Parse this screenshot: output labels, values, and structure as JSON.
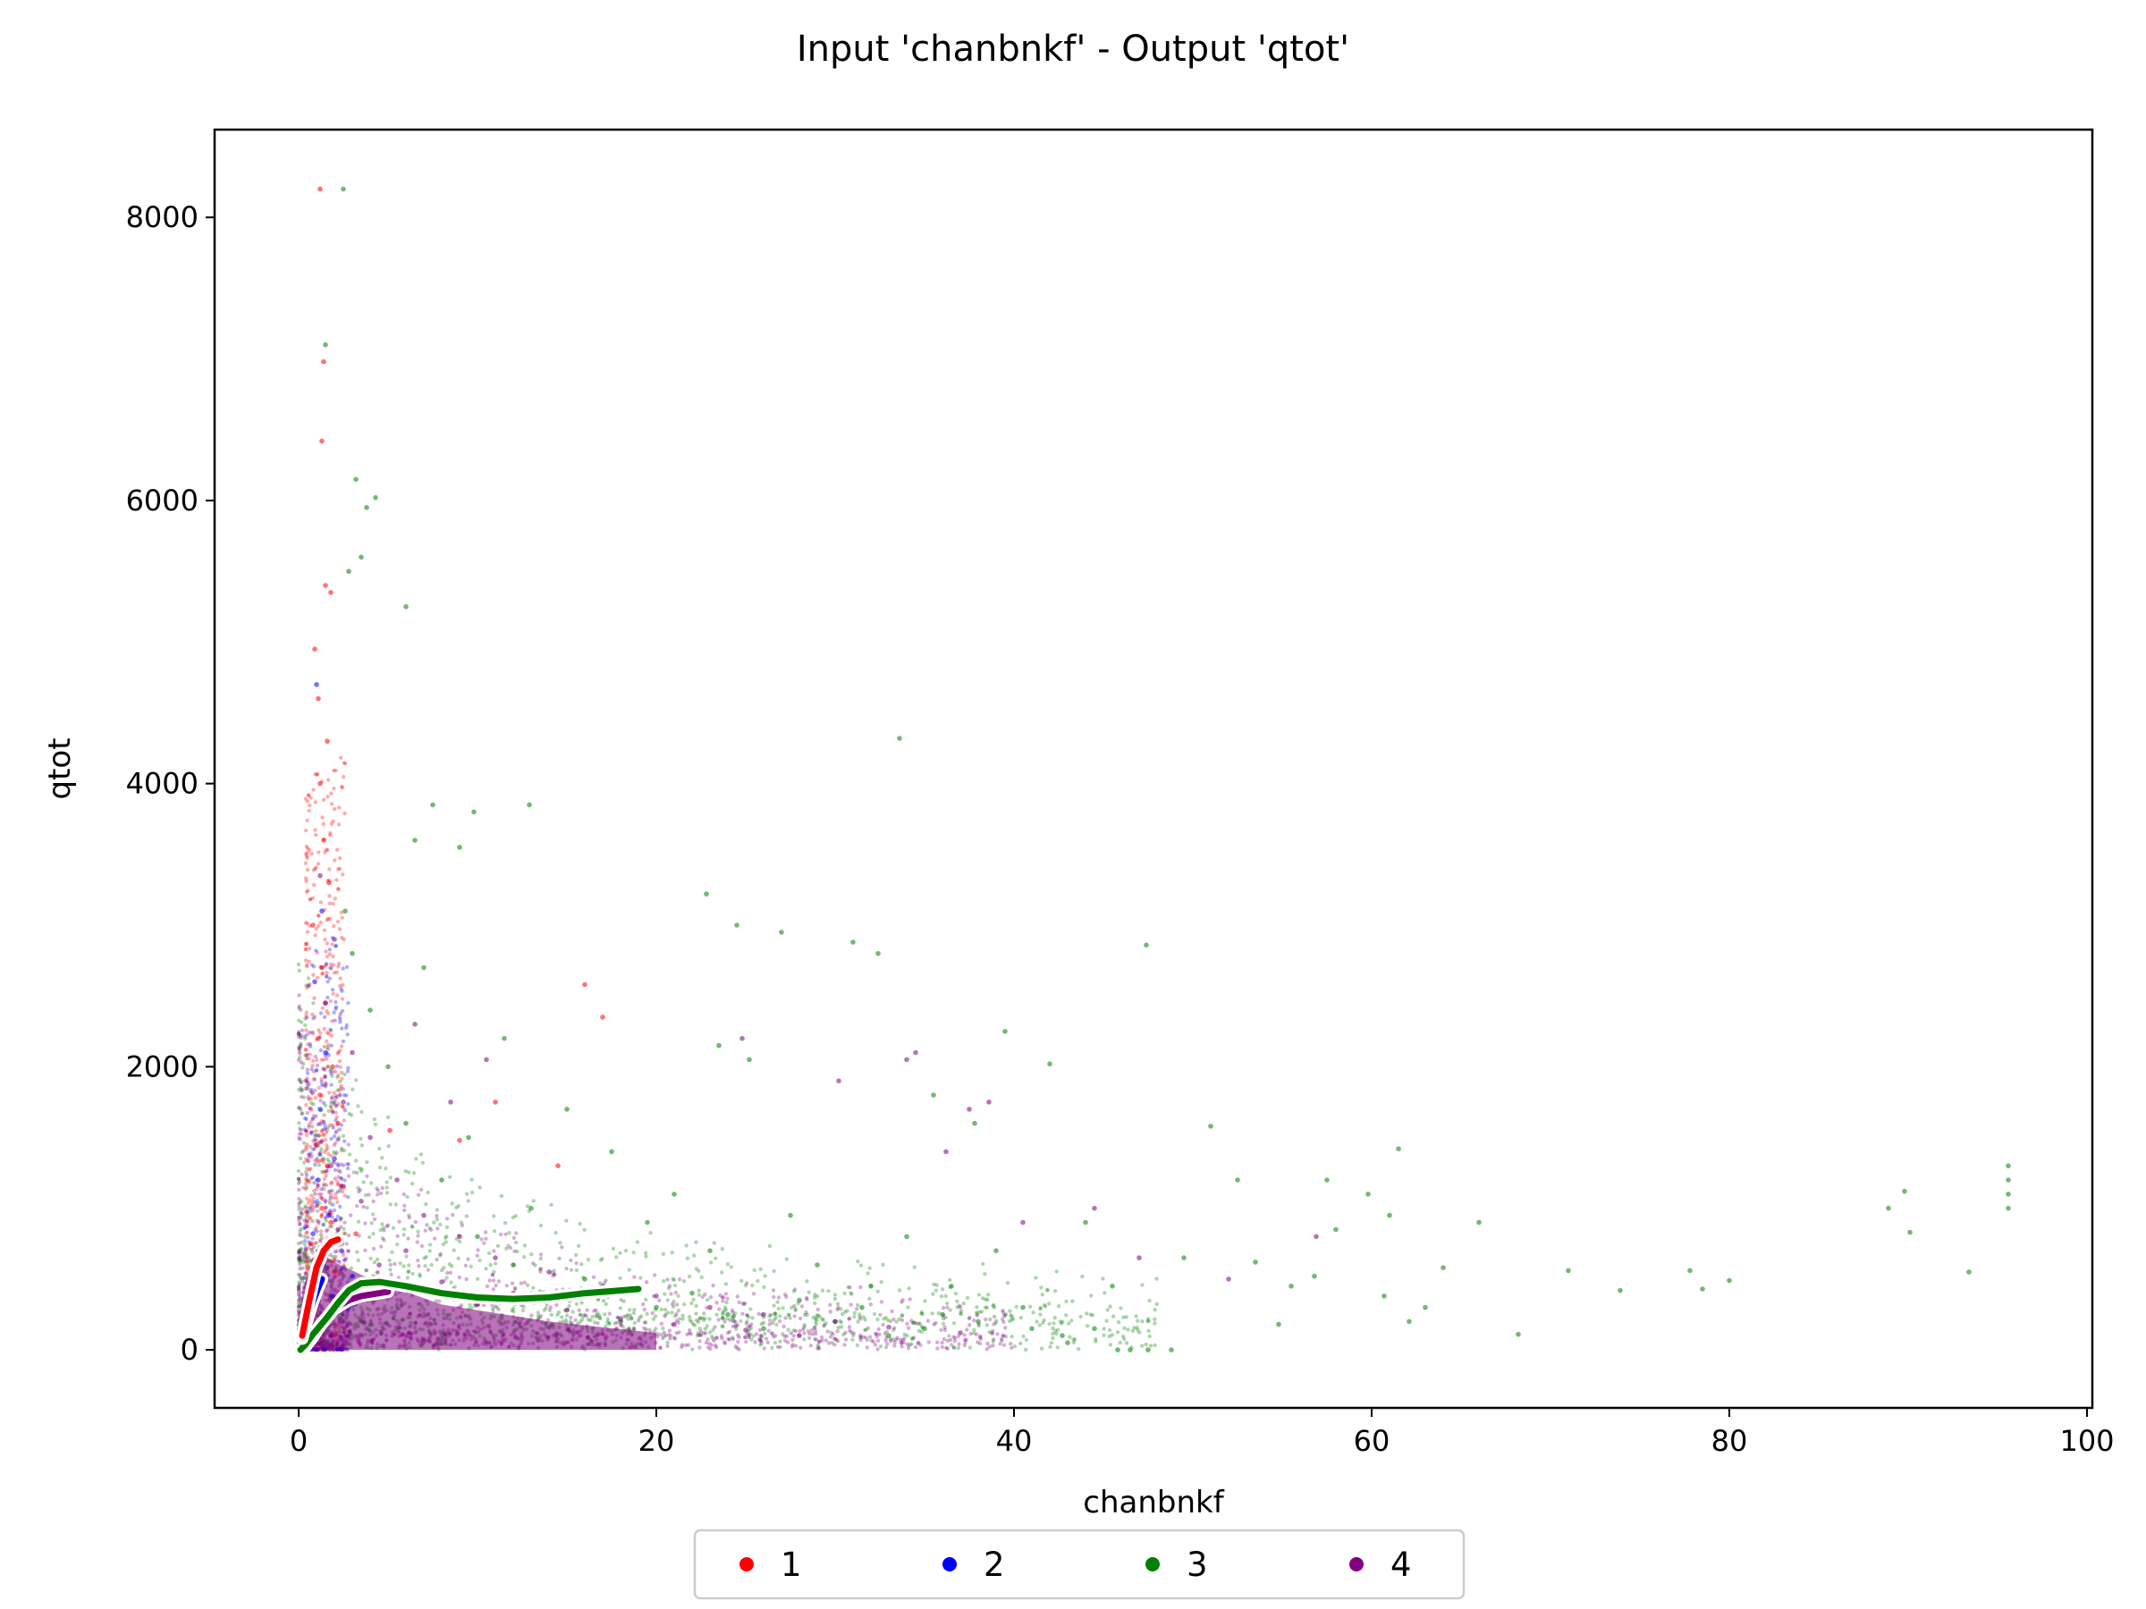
{
  "chart_data": {
    "type": "scatter",
    "title": "Input 'chanbnkf' - Output 'qtot'",
    "xlabel": "chanbnkf",
    "ylabel": "qtot",
    "xlim": [
      -4.7,
      100.3
    ],
    "ylim": [
      -410,
      8620
    ],
    "xticks": [
      0,
      20,
      40,
      60,
      80,
      100
    ],
    "yticks": [
      0,
      2000,
      4000,
      6000,
      8000
    ],
    "xtick_labels": [
      "0",
      "20",
      "40",
      "60",
      "80",
      "100"
    ],
    "ytick_labels": [
      "0",
      "2000",
      "4000",
      "6000",
      "8000"
    ],
    "grid": false,
    "legend_position": "bottom-center",
    "series": [
      {
        "name": "1",
        "color": "#ff0000",
        "points": [
          [
            1.2,
            8200
          ],
          [
            1.4,
            6980
          ],
          [
            1.3,
            6420
          ],
          [
            1.5,
            5400
          ],
          [
            1.8,
            5350
          ],
          [
            0.9,
            4950
          ],
          [
            1.1,
            4600
          ],
          [
            1.6,
            4300
          ],
          [
            1.2,
            4000
          ],
          [
            1.4,
            3600
          ],
          [
            1.7,
            3300
          ],
          [
            0.8,
            3000
          ],
          [
            1.3,
            2700
          ],
          [
            1.5,
            2450
          ],
          [
            1.1,
            2200
          ],
          [
            1.9,
            2000
          ],
          [
            1.2,
            1800
          ],
          [
            2.2,
            1600
          ],
          [
            1.0,
            1450
          ],
          [
            1.6,
            1300
          ],
          [
            2.5,
            1150
          ],
          [
            1.3,
            1000
          ],
          [
            1.8,
            900
          ],
          [
            3.2,
            820
          ],
          [
            0.7,
            750
          ],
          [
            1.4,
            650
          ],
          [
            2.0,
            550
          ],
          [
            1.1,
            480
          ],
          [
            2.7,
            420
          ],
          [
            0.9,
            350
          ],
          [
            5.1,
            1550
          ],
          [
            11.0,
            1750
          ],
          [
            16.0,
            2580
          ],
          [
            17.0,
            2350
          ],
          [
            14.5,
            1300
          ],
          [
            9.0,
            1480
          ]
        ],
        "trend": [
          [
            0.2,
            100
          ],
          [
            0.6,
            350
          ],
          [
            1.0,
            580
          ],
          [
            1.4,
            700
          ],
          [
            1.8,
            760
          ],
          [
            2.2,
            780
          ]
        ]
      },
      {
        "name": "2",
        "color": "#0000ff",
        "points": [
          [
            1.0,
            4700
          ],
          [
            1.3,
            3100
          ],
          [
            0.9,
            2600
          ],
          [
            1.5,
            2100
          ],
          [
            1.2,
            1700
          ],
          [
            2.0,
            1350
          ],
          [
            1.1,
            1200
          ],
          [
            1.7,
            950
          ],
          [
            0.8,
            820
          ],
          [
            2.4,
            700
          ],
          [
            1.4,
            600
          ],
          [
            3.0,
            520
          ],
          [
            1.0,
            450
          ],
          [
            1.9,
            380
          ],
          [
            2.8,
            300
          ]
        ],
        "trend": [
          [
            0.2,
            80
          ],
          [
            0.5,
            220
          ],
          [
            0.8,
            340
          ],
          [
            1.1,
            440
          ],
          [
            1.3,
            500
          ]
        ]
      },
      {
        "name": "3",
        "color": "#008000",
        "points": [
          [
            1.5,
            7100
          ],
          [
            2.5,
            8200
          ],
          [
            3.2,
            6150
          ],
          [
            3.8,
            5950
          ],
          [
            4.3,
            6020
          ],
          [
            3.5,
            5600
          ],
          [
            6.0,
            5250
          ],
          [
            2.8,
            5500
          ],
          [
            7.5,
            3850
          ],
          [
            9.8,
            3800
          ],
          [
            12.9,
            3850
          ],
          [
            9.0,
            3550
          ],
          [
            6.5,
            3600
          ],
          [
            33.6,
            4320
          ],
          [
            22.8,
            3220
          ],
          [
            24.5,
            3000
          ],
          [
            27.0,
            2950
          ],
          [
            31.0,
            2880
          ],
          [
            32.4,
            2800
          ],
          [
            47.4,
            2860
          ],
          [
            39.5,
            2250
          ],
          [
            42.0,
            2020
          ],
          [
            23.5,
            2150
          ],
          [
            25.2,
            2050
          ],
          [
            35.5,
            1800
          ],
          [
            37.8,
            1600
          ],
          [
            51.0,
            1580
          ],
          [
            61.5,
            1420
          ],
          [
            57.5,
            1200
          ],
          [
            59.8,
            1100
          ],
          [
            95.6,
            1300
          ],
          [
            95.6,
            1200
          ],
          [
            95.6,
            1100
          ],
          [
            95.6,
            1000
          ],
          [
            89.8,
            1120
          ],
          [
            88.9,
            1000
          ],
          [
            90.1,
            830
          ],
          [
            93.4,
            550
          ],
          [
            71.0,
            560
          ],
          [
            73.9,
            420
          ],
          [
            77.8,
            560
          ],
          [
            78.5,
            430
          ],
          [
            80.0,
            490
          ],
          [
            68.2,
            110
          ],
          [
            62.1,
            200
          ],
          [
            54.8,
            180
          ],
          [
            56.8,
            520
          ],
          [
            60.7,
            380
          ],
          [
            52.5,
            1200
          ],
          [
            53.5,
            620
          ],
          [
            48.8,
            0
          ],
          [
            47.5,
            0
          ],
          [
            46.5,
            0
          ],
          [
            45.8,
            0
          ],
          [
            43.0,
            50
          ],
          [
            42.7,
            100
          ],
          [
            41.0,
            150
          ],
          [
            38.0,
            200
          ],
          [
            35.0,
            150
          ],
          [
            33.0,
            100
          ],
          [
            31.5,
            300
          ],
          [
            30.0,
            200
          ],
          [
            28.0,
            350
          ],
          [
            26.0,
            150
          ],
          [
            24.0,
            250
          ],
          [
            22.0,
            400
          ],
          [
            20.0,
            300
          ],
          [
            18.0,
            200
          ],
          [
            16.0,
            500
          ],
          [
            14.0,
            350
          ],
          [
            12.0,
            600
          ],
          [
            10.0,
            800
          ],
          [
            8.0,
            1200
          ],
          [
            6.0,
            1600
          ],
          [
            5.0,
            2000
          ],
          [
            4.0,
            2400
          ],
          [
            3.0,
            2800
          ],
          [
            2.6,
            3100
          ],
          [
            19.5,
            900
          ],
          [
            21.0,
            1100
          ],
          [
            23.0,
            700
          ],
          [
            27.5,
            950
          ],
          [
            29.0,
            600
          ],
          [
            34.0,
            800
          ],
          [
            36.5,
            450
          ],
          [
            39.0,
            700
          ],
          [
            44.0,
            900
          ],
          [
            45.5,
            450
          ],
          [
            49.5,
            650
          ],
          [
            55.5,
            450
          ],
          [
            58.0,
            850
          ],
          [
            63.0,
            300
          ],
          [
            66.0,
            900
          ],
          [
            64.0,
            580
          ],
          [
            61.0,
            950
          ],
          [
            15.0,
            1700
          ],
          [
            17.5,
            1400
          ],
          [
            11.5,
            2200
          ],
          [
            7.0,
            2700
          ],
          [
            13.0,
            1000
          ],
          [
            9.5,
            1500
          ],
          [
            40.5,
            300
          ],
          [
            44.5,
            150
          ],
          [
            36.0,
            250
          ],
          [
            32.0,
            450
          ]
        ],
        "trend": [
          [
            0.1,
            0
          ],
          [
            0.4,
            40
          ],
          [
            0.8,
            110
          ],
          [
            1.2,
            170
          ],
          [
            1.6,
            230
          ],
          [
            2.2,
            330
          ],
          [
            2.8,
            420
          ],
          [
            3.5,
            470
          ],
          [
            4.5,
            480
          ],
          [
            6,
            450
          ],
          [
            8,
            400
          ],
          [
            10,
            370
          ],
          [
            12,
            360
          ],
          [
            14,
            370
          ],
          [
            16,
            400
          ],
          [
            18,
            420
          ],
          [
            19,
            430
          ]
        ]
      },
      {
        "name": "4",
        "color": "#800080",
        "points": [
          [
            1.2,
            3350
          ],
          [
            2.0,
            2900
          ],
          [
            1.5,
            2450
          ],
          [
            3.0,
            2100
          ],
          [
            2.5,
            1750
          ],
          [
            4.0,
            1500
          ],
          [
            1.8,
            1300
          ],
          [
            5.5,
            1200
          ],
          [
            3.5,
            1050
          ],
          [
            7.0,
            950
          ],
          [
            2.2,
            850
          ],
          [
            9.0,
            800
          ],
          [
            6.0,
            700
          ],
          [
            11.0,
            650
          ],
          [
            4.5,
            600
          ],
          [
            14.0,
            550
          ],
          [
            8.0,
            480
          ],
          [
            17.0,
            450
          ],
          [
            12.0,
            400
          ],
          [
            20.0,
            380
          ],
          [
            10.0,
            320
          ],
          [
            23.0,
            300
          ],
          [
            15.0,
            280
          ],
          [
            26.0,
            250
          ],
          [
            18.0,
            220
          ],
          [
            30.0,
            200
          ],
          [
            21.0,
            180
          ],
          [
            33.0,
            160
          ],
          [
            25.0,
            140
          ],
          [
            37.0,
            120
          ],
          [
            28.0,
            100
          ],
          [
            34.5,
            2100
          ],
          [
            34.0,
            2050
          ],
          [
            37.5,
            1700
          ],
          [
            38.6,
            1750
          ],
          [
            30.2,
            1900
          ],
          [
            24.8,
            2200
          ],
          [
            36.2,
            1400
          ],
          [
            56.9,
            800
          ],
          [
            40.5,
            900
          ],
          [
            52.0,
            500
          ],
          [
            44.5,
            1000
          ],
          [
            47.0,
            650
          ],
          [
            6.5,
            2300
          ],
          [
            10.5,
            2050
          ],
          [
            8.5,
            1750
          ]
        ],
        "trend": [
          [
            0.3,
            10
          ],
          [
            0.8,
            90
          ],
          [
            1.3,
            190
          ],
          [
            2.0,
            290
          ],
          [
            2.8,
            350
          ],
          [
            3.5,
            380
          ],
          [
            4.5,
            400
          ],
          [
            5.0,
            410
          ]
        ]
      }
    ],
    "legend": [
      "1",
      "2",
      "3",
      "4"
    ]
  }
}
